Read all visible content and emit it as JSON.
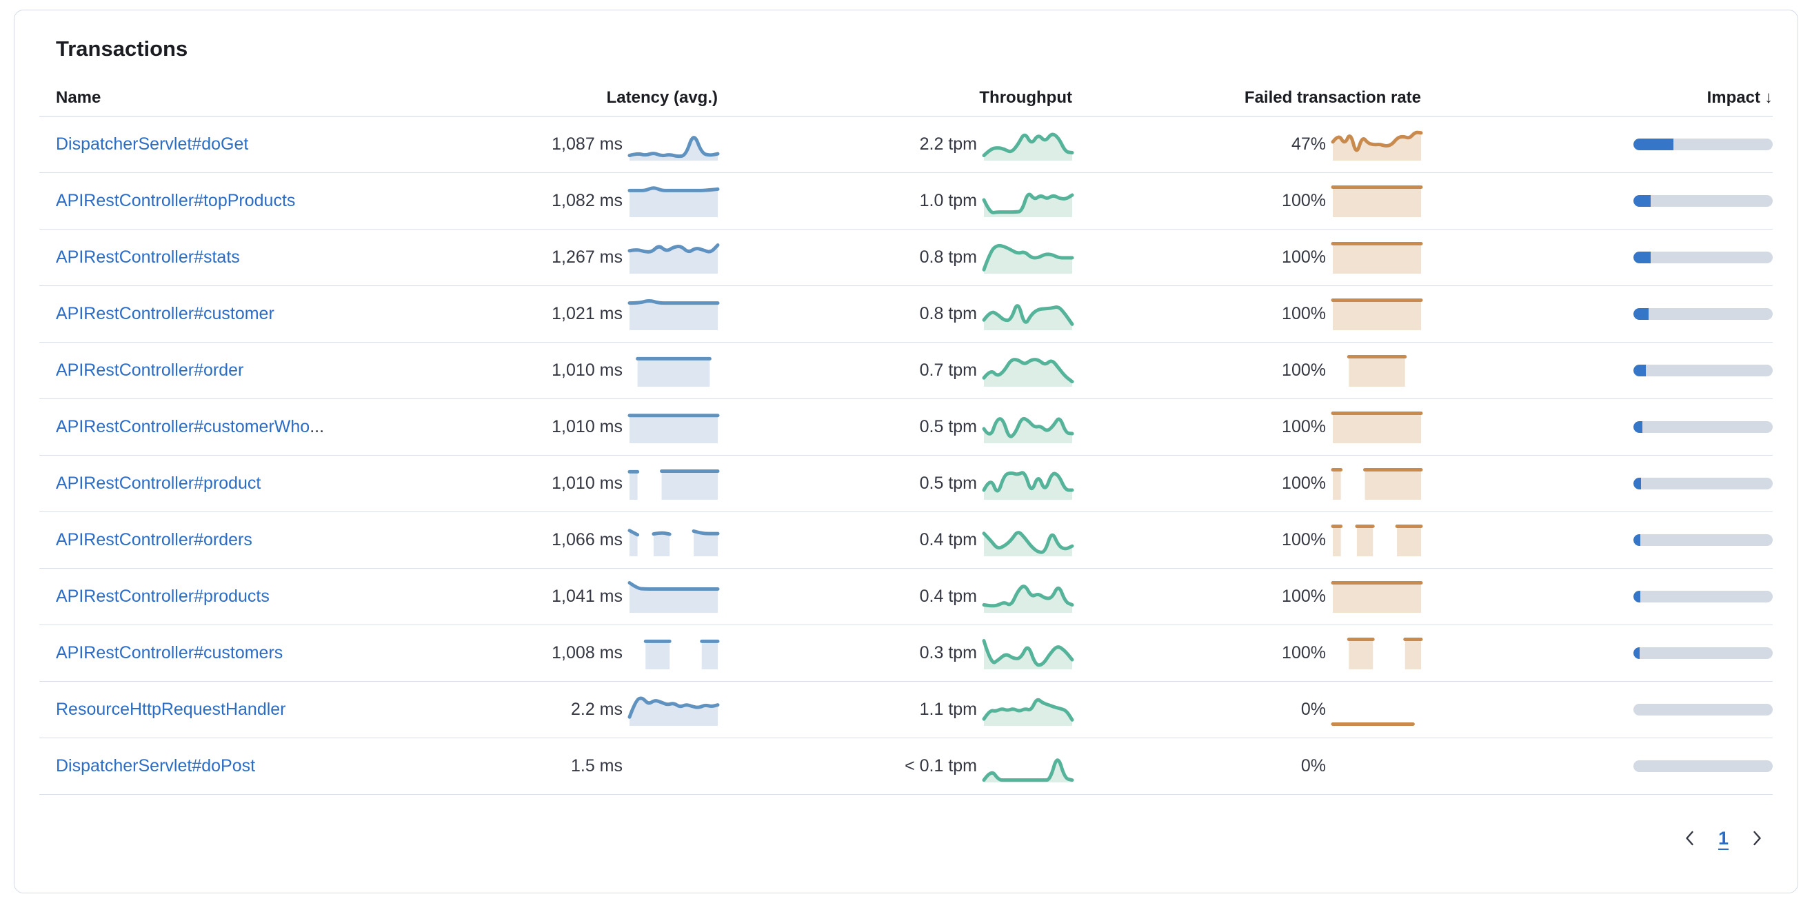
{
  "panel": {
    "title": "Transactions"
  },
  "table": {
    "sort_arrow": "↓",
    "truncation_ellipsis": "...",
    "columns": [
      {
        "key": "name",
        "label": "Name"
      },
      {
        "key": "latency",
        "label": "Latency (avg.)"
      },
      {
        "key": "throughput",
        "label": "Throughput"
      },
      {
        "key": "failed",
        "label": "Failed transaction rate"
      },
      {
        "key": "impact",
        "label": "Impact",
        "sorted": "desc"
      }
    ],
    "rows": [
      {
        "name": "DispatcherServlet#doGet",
        "truncated": false,
        "latency": "1,087 ms",
        "latency_spark": [
          0.12,
          0.2,
          0.12,
          0.22,
          0.1,
          0.16,
          0.08,
          0.12,
          0.95,
          0.2,
          0.12,
          0.18
        ],
        "throughput": "2.2 tpm",
        "throughput_spark": [
          0.12,
          0.35,
          0.4,
          0.35,
          0.22,
          0.5,
          0.95,
          0.5,
          0.88,
          0.6,
          0.92,
          0.75,
          0.25,
          0.22
        ],
        "failed_rate": "47%",
        "failed_spark": [
          0.6,
          0.88,
          0.5,
          0.95,
          0.12,
          0.8,
          0.55,
          0.5,
          0.52,
          0.45,
          0.5,
          0.75,
          0.8,
          0.72,
          0.95,
          0.92
        ],
        "impact": 0.285
      },
      {
        "name": "APIRestController#topProducts",
        "truncated": false,
        "latency": "1,082 ms",
        "latency_spark": [
          0.88,
          0.88,
          0.88,
          1.0,
          0.88,
          0.88,
          0.88,
          0.88,
          0.88,
          0.88,
          0.9,
          0.93
        ],
        "throughput": "1.0 tpm",
        "throughput_spark": [
          0.55,
          0.08,
          0.12,
          0.12,
          0.12,
          0.12,
          0.14,
          0.85,
          0.55,
          0.72,
          0.58,
          0.72,
          0.6,
          0.58,
          0.72
        ],
        "failed_rate": "100%",
        "failed_spark": [
          1,
          1,
          1,
          1,
          1,
          1,
          1,
          1,
          1,
          1,
          1,
          1
        ],
        "impact": 0.126
      },
      {
        "name": "APIRestController#stats",
        "truncated": false,
        "latency": "1,267 ms",
        "latency_spark": [
          0.75,
          0.8,
          0.72,
          0.7,
          0.95,
          0.72,
          0.88,
          0.92,
          0.68,
          0.85,
          0.78,
          0.68,
          0.95
        ],
        "throughput": "0.8 tpm",
        "throughput_spark": [
          0.08,
          0.75,
          0.95,
          0.9,
          0.78,
          0.65,
          0.72,
          0.5,
          0.5,
          0.63,
          0.62,
          0.5,
          0.5,
          0.5
        ],
        "failed_rate": "100%",
        "failed_spark": [
          1,
          1,
          1,
          1,
          1,
          1,
          1,
          1,
          1,
          1,
          1,
          1
        ],
        "impact": 0.124
      },
      {
        "name": "APIRestController#customer",
        "truncated": false,
        "latency": "1,021 ms",
        "latency_spark": [
          0.9,
          0.9,
          1.0,
          0.9,
          0.9,
          0.9,
          0.9,
          0.9,
          0.9,
          0.9
        ],
        "throughput": "0.8 tpm",
        "throughput_spark": [
          0.3,
          0.62,
          0.5,
          0.28,
          0.3,
          1.0,
          0.08,
          0.5,
          0.68,
          0.7,
          0.72,
          0.78,
          0.5,
          0.15
        ],
        "failed_rate": "100%",
        "failed_spark": [
          1,
          1,
          1,
          1,
          1,
          1,
          1,
          1,
          1,
          1,
          1,
          1
        ],
        "impact": 0.108
      },
      {
        "name": "APIRestController#order",
        "truncated": false,
        "latency": "1,010 ms",
        "latency_spark": [
          null,
          0.93,
          0.93,
          0.93,
          0.93,
          0.93,
          0.93,
          0.93,
          0.93,
          0.93,
          0.93,
          null
        ],
        "throughput": "0.7 tpm",
        "throughput_spark": [
          0.25,
          0.55,
          0.3,
          0.5,
          0.9,
          0.9,
          0.72,
          0.9,
          0.9,
          0.7,
          0.9,
          0.6,
          0.3,
          0.12
        ],
        "failed_rate": "100%",
        "failed_spark": [
          null,
          null,
          1,
          1,
          1,
          1,
          1,
          1,
          1,
          1,
          null,
          null
        ],
        "impact": 0.088
      },
      {
        "name": "APIRestController#customerWho",
        "truncated": true,
        "latency": "1,010 ms",
        "latency_spark": [
          0.92,
          0.92,
          0.92,
          0.92,
          0.92,
          0.92,
          0.92,
          0.92,
          0.92,
          0.92,
          0.92,
          0.92
        ],
        "throughput": "0.5 tpm",
        "throughput_spark": [
          0.45,
          0.1,
          0.78,
          0.82,
          0.1,
          0.3,
          0.85,
          0.75,
          0.5,
          0.55,
          0.35,
          0.55,
          0.9,
          0.3,
          0.28
        ],
        "failed_rate": "100%",
        "failed_spark": [
          1,
          1,
          1,
          1,
          1,
          1,
          1,
          1,
          1,
          1,
          1,
          1
        ],
        "impact": 0.062
      },
      {
        "name": "APIRestController#product",
        "truncated": false,
        "latency": "1,010 ms",
        "latency_spark": [
          0.93,
          0.93,
          null,
          null,
          0.95,
          0.95,
          0.95,
          0.95,
          0.95,
          0.95,
          0.95,
          0.95
        ],
        "throughput": "0.5 tpm",
        "throughput_spark": [
          0.28,
          0.75,
          0.08,
          0.82,
          0.9,
          0.82,
          0.95,
          0.15,
          0.85,
          0.2,
          0.9,
          0.82,
          0.28,
          0.28
        ],
        "failed_rate": "100%",
        "failed_spark": [
          1,
          1,
          null,
          null,
          1,
          1,
          1,
          1,
          1,
          1,
          1,
          1
        ],
        "impact": 0.055
      },
      {
        "name": "APIRestController#orders",
        "truncated": false,
        "latency": "1,066 ms",
        "latency_spark": [
          0.85,
          0.7,
          null,
          0.73,
          0.78,
          0.72,
          null,
          null,
          0.83,
          0.75,
          0.74,
          0.74
        ],
        "throughput": "0.4 tpm",
        "throughput_spark": [
          0.75,
          0.5,
          0.2,
          0.3,
          0.5,
          0.85,
          0.6,
          0.28,
          0.08,
          0.08,
          0.85,
          0.3,
          0.18,
          0.3
        ],
        "failed_rate": "100%",
        "failed_spark": [
          1,
          1,
          null,
          1,
          1,
          1,
          null,
          null,
          1,
          1,
          1,
          1
        ],
        "impact": 0.05
      },
      {
        "name": "APIRestController#products",
        "truncated": false,
        "latency": "1,041 ms",
        "latency_spark": [
          1.0,
          0.8,
          0.78,
          0.78,
          0.78,
          0.78,
          0.78,
          0.78,
          0.78,
          0.78,
          0.78,
          0.78
        ],
        "throughput": "0.4 tpm",
        "throughput_spark": [
          0.22,
          0.18,
          0.2,
          0.32,
          0.18,
          0.72,
          0.95,
          0.5,
          0.62,
          0.45,
          0.45,
          0.95,
          0.32,
          0.22
        ],
        "failed_rate": "100%",
        "failed_spark": [
          1,
          1,
          1,
          1,
          1,
          1,
          1,
          1,
          1,
          1,
          1,
          1
        ],
        "impact": 0.048
      },
      {
        "name": "APIRestController#customers",
        "truncated": false,
        "latency": "1,008 ms",
        "latency_spark": [
          null,
          null,
          0.93,
          0.93,
          0.93,
          0.93,
          null,
          null,
          null,
          0.93,
          0.93,
          0.93
        ],
        "throughput": "0.3 tpm",
        "throughput_spark": [
          0.95,
          0.1,
          0.28,
          0.5,
          0.32,
          0.32,
          0.85,
          0.08,
          0.1,
          0.5,
          0.78,
          0.6,
          0.28
        ],
        "failed_rate": "100%",
        "failed_spark": [
          null,
          null,
          1,
          1,
          1,
          1,
          null,
          null,
          null,
          1,
          1,
          1
        ],
        "impact": 0.045
      },
      {
        "name": "ResourceHttpRequestHandler",
        "truncated": false,
        "latency": "2.2 ms",
        "latency_spark": [
          0.25,
          0.85,
          0.95,
          0.7,
          0.85,
          0.78,
          0.68,
          0.75,
          0.6,
          0.7,
          0.62,
          0.58,
          0.68,
          0.62,
          0.68
        ],
        "throughput": "1.1 tpm",
        "throughput_spark": [
          0.18,
          0.5,
          0.45,
          0.55,
          0.48,
          0.55,
          0.45,
          0.55,
          0.48,
          0.92,
          0.75,
          0.68,
          0.6,
          0.55,
          0.48,
          0.15
        ],
        "failed_rate": "0%",
        "failed_spark": [
          0,
          0,
          0,
          0,
          0,
          0,
          0,
          0,
          0,
          0,
          0,
          null
        ],
        "impact": 0
      },
      {
        "name": "DispatcherServlet#doPost",
        "truncated": false,
        "latency": "1.5 ms",
        "latency_spark": null,
        "throughput": "< 0.1 tpm",
        "throughput_spark": [
          0.02,
          0.4,
          0.02,
          0.02,
          0.02,
          0.02,
          0.02,
          0.02,
          0.02,
          0.02,
          0.95,
          0.08,
          0.02
        ],
        "failed_rate": "0%",
        "failed_spark": null,
        "impact": 0
      }
    ]
  },
  "pagination": {
    "current_page": "1"
  },
  "colors": {
    "link": "#2b6cc5",
    "header_text": "#1a1c21",
    "value_text": "#343741",
    "latency_stroke": "#6092c0",
    "latency_fill": "#dde6f1",
    "throughput_stroke": "#54b399",
    "throughput_fill": "#ddeee7",
    "failed_stroke": "#c98a4e",
    "failed_fill": "#f2e2d1",
    "impact_fill": "#3576c9",
    "impact_track": "#d3dae4",
    "panel_border": "#d3dae6",
    "row_border": "#d9dfe9"
  }
}
